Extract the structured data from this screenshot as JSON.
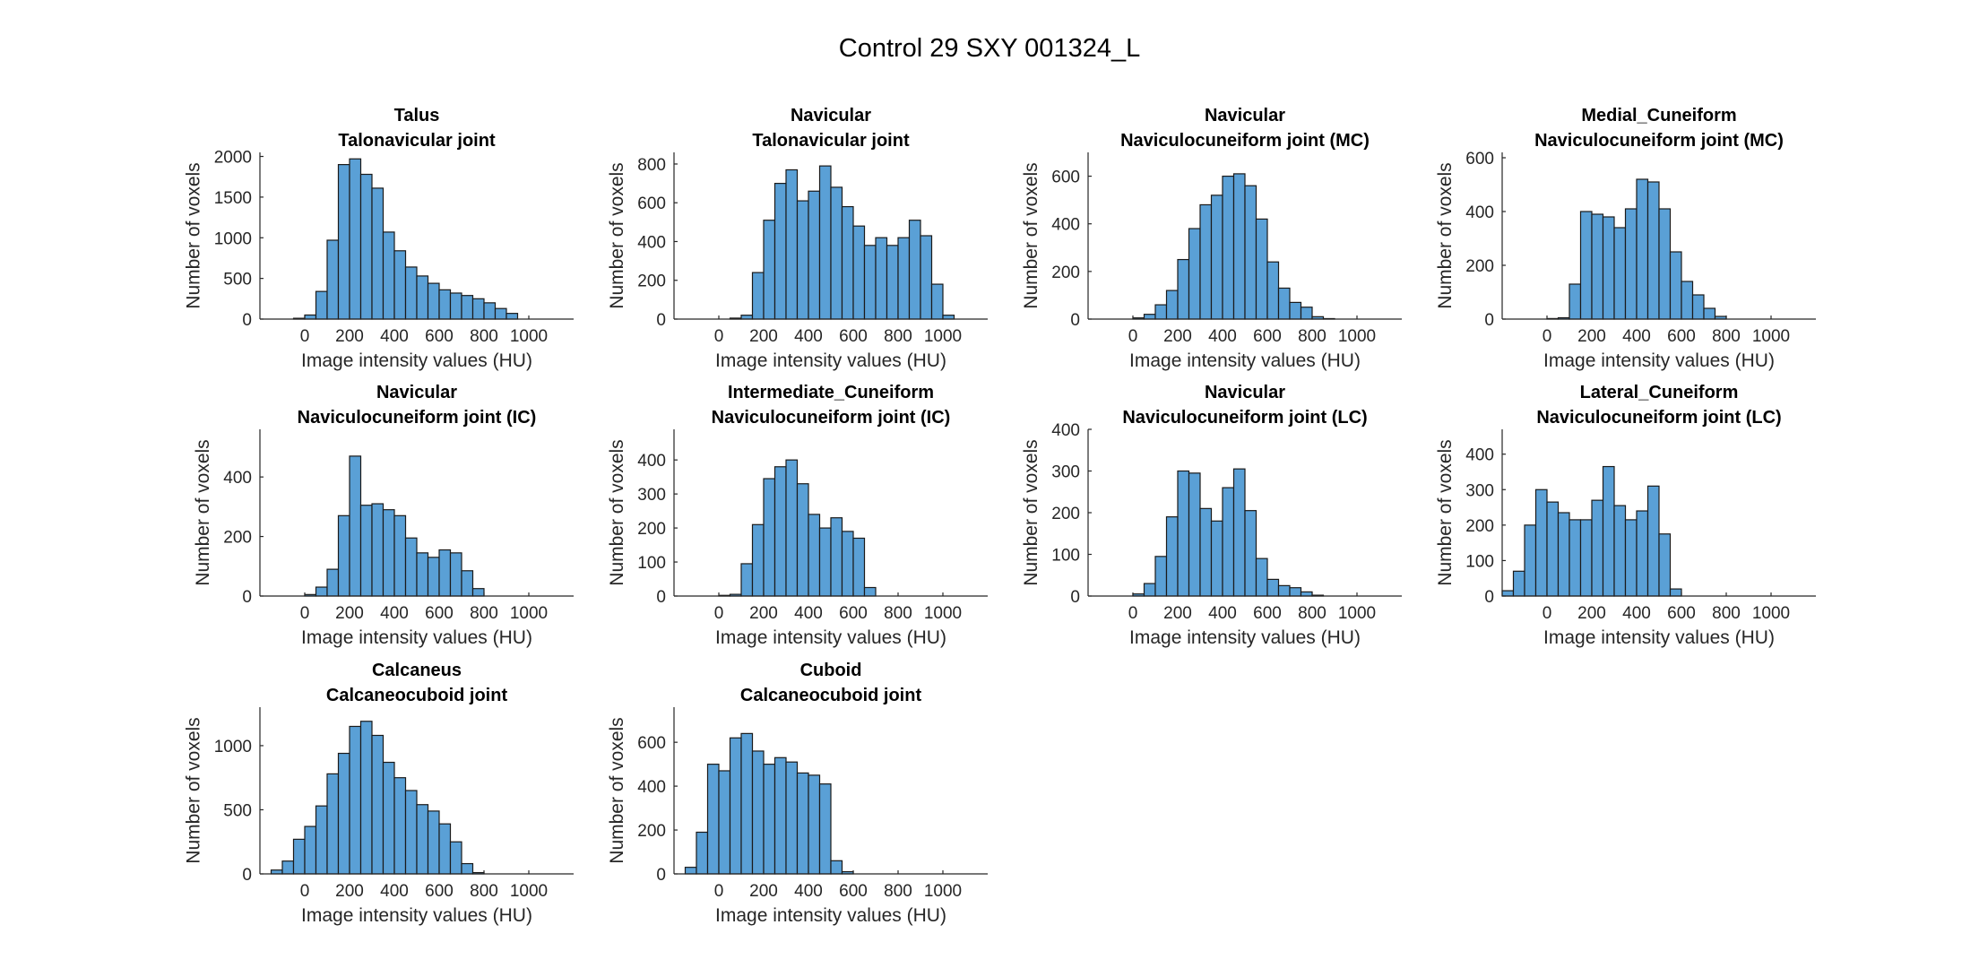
{
  "figure": {
    "title": "Control 29 SXY 001324_L",
    "colors": {
      "bar_fill": "#5aa0d6",
      "bar_edge": "#1a1a1a",
      "axis": "#262626"
    }
  },
  "chart_data": [
    {
      "type": "bar",
      "title": [
        "Talus",
        "Talonavicular joint"
      ],
      "xlabel": "Image intensity values (HU)",
      "ylabel": "Number of voxels",
      "xlim": [
        -200,
        1200
      ],
      "ylim": [
        0,
        2050
      ],
      "xticks": [
        0,
        200,
        400,
        600,
        800,
        1000
      ],
      "yticks": [
        0,
        500,
        1000,
        1500,
        2000
      ],
      "bin_start": -200,
      "bin_width": 50,
      "values": [
        0,
        0,
        0,
        10,
        50,
        340,
        970,
        1900,
        1970,
        1780,
        1610,
        1070,
        840,
        640,
        530,
        440,
        360,
        320,
        290,
        250,
        200,
        130,
        70,
        0
      ]
    },
    {
      "type": "bar",
      "title": [
        "Navicular",
        "Talonavicular joint"
      ],
      "xlabel": "Image intensity values (HU)",
      "ylabel": "Number of voxels",
      "xlim": [
        -200,
        1200
      ],
      "ylim": [
        0,
        860
      ],
      "xticks": [
        0,
        200,
        400,
        600,
        800,
        1000
      ],
      "yticks": [
        0,
        200,
        400,
        600,
        800
      ],
      "bin_start": -200,
      "bin_width": 50,
      "values": [
        0,
        0,
        0,
        0,
        0,
        5,
        20,
        240,
        510,
        700,
        770,
        610,
        660,
        790,
        680,
        580,
        480,
        380,
        420,
        380,
        420,
        510,
        430,
        180,
        20
      ]
    },
    {
      "type": "bar",
      "title": [
        "Navicular",
        "Naviculocuneiform joint (MC)"
      ],
      "xlabel": "Image intensity values (HU)",
      "ylabel": "Number of voxels",
      "xlim": [
        -200,
        1200
      ],
      "ylim": [
        0,
        700
      ],
      "xticks": [
        0,
        200,
        400,
        600,
        800,
        1000
      ],
      "yticks": [
        0,
        200,
        400,
        600
      ],
      "bin_start": -200,
      "bin_width": 50,
      "values": [
        0,
        0,
        0,
        0,
        5,
        20,
        60,
        120,
        250,
        380,
        480,
        520,
        600,
        610,
        560,
        420,
        240,
        130,
        70,
        50,
        10,
        2,
        0,
        0
      ]
    },
    {
      "type": "bar",
      "title": [
        "Medial_Cuneiform",
        "Naviculocuneiform joint (MC)"
      ],
      "xlabel": "Image intensity values (HU)",
      "ylabel": "Number of voxels",
      "xlim": [
        -200,
        1200
      ],
      "ylim": [
        0,
        620
      ],
      "xticks": [
        0,
        200,
        400,
        600,
        800,
        1000
      ],
      "yticks": [
        0,
        200,
        400,
        600
      ],
      "bin_start": -200,
      "bin_width": 50,
      "values": [
        0,
        0,
        0,
        0,
        2,
        5,
        130,
        400,
        390,
        380,
        340,
        410,
        520,
        510,
        410,
        250,
        140,
        90,
        40,
        10,
        0,
        0,
        0,
        0
      ]
    },
    {
      "type": "bar",
      "title": [
        "Navicular",
        "Naviculocuneiform joint (IC)"
      ],
      "xlabel": "Image intensity values (HU)",
      "ylabel": "Number of voxels",
      "xlim": [
        -200,
        1200
      ],
      "ylim": [
        0,
        560
      ],
      "xticks": [
        0,
        200,
        400,
        600,
        800,
        1000
      ],
      "yticks": [
        0,
        200,
        400
      ],
      "bin_start": -200,
      "bin_width": 50,
      "values": [
        0,
        0,
        0,
        0,
        5,
        30,
        90,
        270,
        470,
        305,
        310,
        290,
        270,
        195,
        145,
        130,
        155,
        145,
        85,
        25,
        0,
        0,
        0,
        0
      ]
    },
    {
      "type": "bar",
      "title": [
        "Intermediate_Cuneiform",
        "Naviculocuneiform joint (IC)"
      ],
      "xlabel": "Image intensity values (HU)",
      "ylabel": "Number of voxels",
      "xlim": [
        -200,
        1200
      ],
      "ylim": [
        0,
        490
      ],
      "xticks": [
        0,
        200,
        400,
        600,
        800,
        1000
      ],
      "yticks": [
        0,
        100,
        200,
        300,
        400
      ],
      "bin_start": -200,
      "bin_width": 50,
      "values": [
        0,
        0,
        0,
        0,
        2,
        5,
        95,
        210,
        345,
        380,
        400,
        330,
        240,
        200,
        230,
        190,
        170,
        25,
        0,
        0,
        0,
        0,
        0,
        0
      ]
    },
    {
      "type": "bar",
      "title": [
        "Navicular",
        "Naviculocuneiform joint (LC)"
      ],
      "xlabel": "Image intensity values (HU)",
      "ylabel": "Number of voxels",
      "xlim": [
        -200,
        1200
      ],
      "ylim": [
        0,
        400
      ],
      "xticks": [
        0,
        200,
        400,
        600,
        800,
        1000
      ],
      "yticks": [
        0,
        100,
        200,
        300,
        400
      ],
      "bin_start": -200,
      "bin_width": 50,
      "values": [
        0,
        0,
        0,
        0,
        5,
        30,
        95,
        190,
        300,
        295,
        210,
        180,
        260,
        305,
        205,
        90,
        40,
        25,
        20,
        10,
        2,
        0,
        0,
        0
      ]
    },
    {
      "type": "bar",
      "title": [
        "Lateral_Cuneiform",
        "Naviculocuneiform joint (LC)"
      ],
      "xlabel": "Image intensity values (HU)",
      "ylabel": "Number of voxels",
      "xlim": [
        -200,
        1200
      ],
      "ylim": [
        0,
        470
      ],
      "xticks": [
        0,
        200,
        400,
        600,
        800,
        1000
      ],
      "yticks": [
        0,
        100,
        200,
        300,
        400
      ],
      "bin_start": -200,
      "bin_width": 50,
      "values": [
        15,
        70,
        200,
        300,
        265,
        235,
        215,
        215,
        270,
        365,
        255,
        215,
        240,
        310,
        175,
        20,
        0,
        0,
        0,
        0,
        0,
        0,
        0,
        0
      ]
    },
    {
      "type": "bar",
      "title": [
        "Calcaneus",
        "Calcaneocuboid joint"
      ],
      "xlabel": "Image intensity values (HU)",
      "ylabel": "Number of voxels",
      "xlim": [
        -200,
        1200
      ],
      "ylim": [
        0,
        1300
      ],
      "xticks": [
        0,
        200,
        400,
        600,
        800,
        1000
      ],
      "yticks": [
        0,
        500,
        1000
      ],
      "bin_start": -200,
      "bin_width": 50,
      "values": [
        0,
        30,
        100,
        270,
        370,
        530,
        780,
        940,
        1150,
        1190,
        1080,
        870,
        750,
        650,
        540,
        490,
        390,
        250,
        80,
        10,
        0,
        0,
        0,
        0
      ]
    },
    {
      "type": "bar",
      "title": [
        "Cuboid",
        "Calcaneocuboid joint"
      ],
      "xlabel": "Image intensity values (HU)",
      "ylabel": "Number of voxels",
      "xlim": [
        -200,
        1200
      ],
      "ylim": [
        0,
        760
      ],
      "xticks": [
        0,
        200,
        400,
        600,
        800,
        1000
      ],
      "yticks": [
        0,
        200,
        400,
        600
      ],
      "bin_start": -200,
      "bin_width": 50,
      "values": [
        0,
        30,
        190,
        500,
        470,
        620,
        640,
        560,
        500,
        530,
        510,
        460,
        450,
        410,
        60,
        10,
        0,
        0,
        0,
        0,
        0,
        0,
        0,
        0
      ]
    }
  ]
}
